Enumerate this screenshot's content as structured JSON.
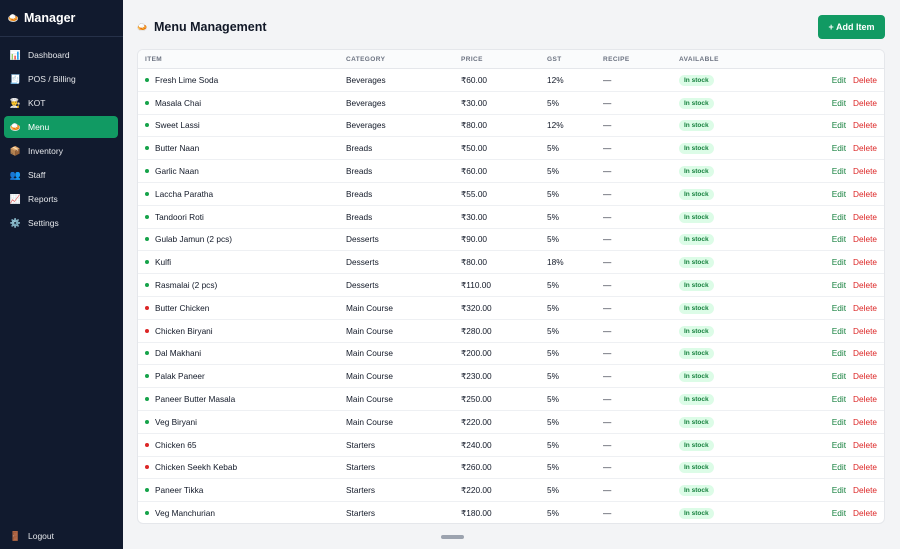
{
  "brand": {
    "icon": "🍛",
    "title": "Manager"
  },
  "sidebar": {
    "items": [
      {
        "icon": "📊",
        "label": "Dashboard",
        "active": false
      },
      {
        "icon": "🧾",
        "label": "POS / Billing",
        "active": false
      },
      {
        "icon": "👨‍🍳",
        "label": "KOT",
        "active": false
      },
      {
        "icon": "🍛",
        "label": "Menu",
        "active": true
      },
      {
        "icon": "📦",
        "label": "Inventory",
        "active": false
      },
      {
        "icon": "👥",
        "label": "Staff",
        "active": false
      },
      {
        "icon": "📈",
        "label": "Reports",
        "active": false
      },
      {
        "icon": "⚙️",
        "label": "Settings",
        "active": false
      }
    ],
    "logout": {
      "icon": "🚪",
      "label": "Logout"
    }
  },
  "header": {
    "icon": "🍛",
    "title": "Menu Management",
    "add_label": "+ Add Item"
  },
  "table": {
    "columns": [
      "ITEM",
      "CATEGORY",
      "PRICE",
      "GST",
      "RECIPE",
      "AVAILABLE"
    ],
    "edit_label": "Edit",
    "delete_label": "Delete",
    "rows": [
      {
        "name": "Fresh Lime Soda",
        "veg": true,
        "category": "Beverages",
        "price": "₹60.00",
        "gst": "12%",
        "recipe": "—",
        "available": "In stock"
      },
      {
        "name": "Masala Chai",
        "veg": true,
        "category": "Beverages",
        "price": "₹30.00",
        "gst": "5%",
        "recipe": "—",
        "available": "In stock"
      },
      {
        "name": "Sweet Lassi",
        "veg": true,
        "category": "Beverages",
        "price": "₹80.00",
        "gst": "12%",
        "recipe": "—",
        "available": "In stock"
      },
      {
        "name": "Butter Naan",
        "veg": true,
        "category": "Breads",
        "price": "₹50.00",
        "gst": "5%",
        "recipe": "—",
        "available": "In stock"
      },
      {
        "name": "Garlic Naan",
        "veg": true,
        "category": "Breads",
        "price": "₹60.00",
        "gst": "5%",
        "recipe": "—",
        "available": "In stock"
      },
      {
        "name": "Laccha Paratha",
        "veg": true,
        "category": "Breads",
        "price": "₹55.00",
        "gst": "5%",
        "recipe": "—",
        "available": "In stock"
      },
      {
        "name": "Tandoori Roti",
        "veg": true,
        "category": "Breads",
        "price": "₹30.00",
        "gst": "5%",
        "recipe": "—",
        "available": "In stock"
      },
      {
        "name": "Gulab Jamun (2 pcs)",
        "veg": true,
        "category": "Desserts",
        "price": "₹90.00",
        "gst": "5%",
        "recipe": "—",
        "available": "In stock"
      },
      {
        "name": "Kulfi",
        "veg": true,
        "category": "Desserts",
        "price": "₹80.00",
        "gst": "18%",
        "recipe": "—",
        "available": "In stock"
      },
      {
        "name": "Rasmalai (2 pcs)",
        "veg": true,
        "category": "Desserts",
        "price": "₹110.00",
        "gst": "5%",
        "recipe": "—",
        "available": "In stock"
      },
      {
        "name": "Butter Chicken",
        "veg": false,
        "category": "Main Course",
        "price": "₹320.00",
        "gst": "5%",
        "recipe": "—",
        "available": "In stock"
      },
      {
        "name": "Chicken Biryani",
        "veg": false,
        "category": "Main Course",
        "price": "₹280.00",
        "gst": "5%",
        "recipe": "—",
        "available": "In stock"
      },
      {
        "name": "Dal Makhani",
        "veg": true,
        "category": "Main Course",
        "price": "₹200.00",
        "gst": "5%",
        "recipe": "—",
        "available": "In stock"
      },
      {
        "name": "Palak Paneer",
        "veg": true,
        "category": "Main Course",
        "price": "₹230.00",
        "gst": "5%",
        "recipe": "—",
        "available": "In stock"
      },
      {
        "name": "Paneer Butter Masala",
        "veg": true,
        "category": "Main Course",
        "price": "₹250.00",
        "gst": "5%",
        "recipe": "—",
        "available": "In stock"
      },
      {
        "name": "Veg Biryani",
        "veg": true,
        "category": "Main Course",
        "price": "₹220.00",
        "gst": "5%",
        "recipe": "—",
        "available": "In stock"
      },
      {
        "name": "Chicken 65",
        "veg": false,
        "category": "Starters",
        "price": "₹240.00",
        "gst": "5%",
        "recipe": "—",
        "available": "In stock"
      },
      {
        "name": "Chicken Seekh Kebab",
        "veg": false,
        "category": "Starters",
        "price": "₹260.00",
        "gst": "5%",
        "recipe": "—",
        "available": "In stock"
      },
      {
        "name": "Paneer Tikka",
        "veg": true,
        "category": "Starters",
        "price": "₹220.00",
        "gst": "5%",
        "recipe": "—",
        "available": "In stock"
      },
      {
        "name": "Veg Manchurian",
        "veg": true,
        "category": "Starters",
        "price": "₹180.00",
        "gst": "5%",
        "recipe": "—",
        "available": "In stock"
      }
    ]
  },
  "colors": {
    "accent": "#119a63",
    "sidebar_bg": "#111a2e",
    "veg_dot": "#16a34a",
    "nonveg_dot": "#dc2626",
    "delete": "#dc2626",
    "badge_bg": "#dcfce7",
    "badge_text": "#15803d"
  }
}
